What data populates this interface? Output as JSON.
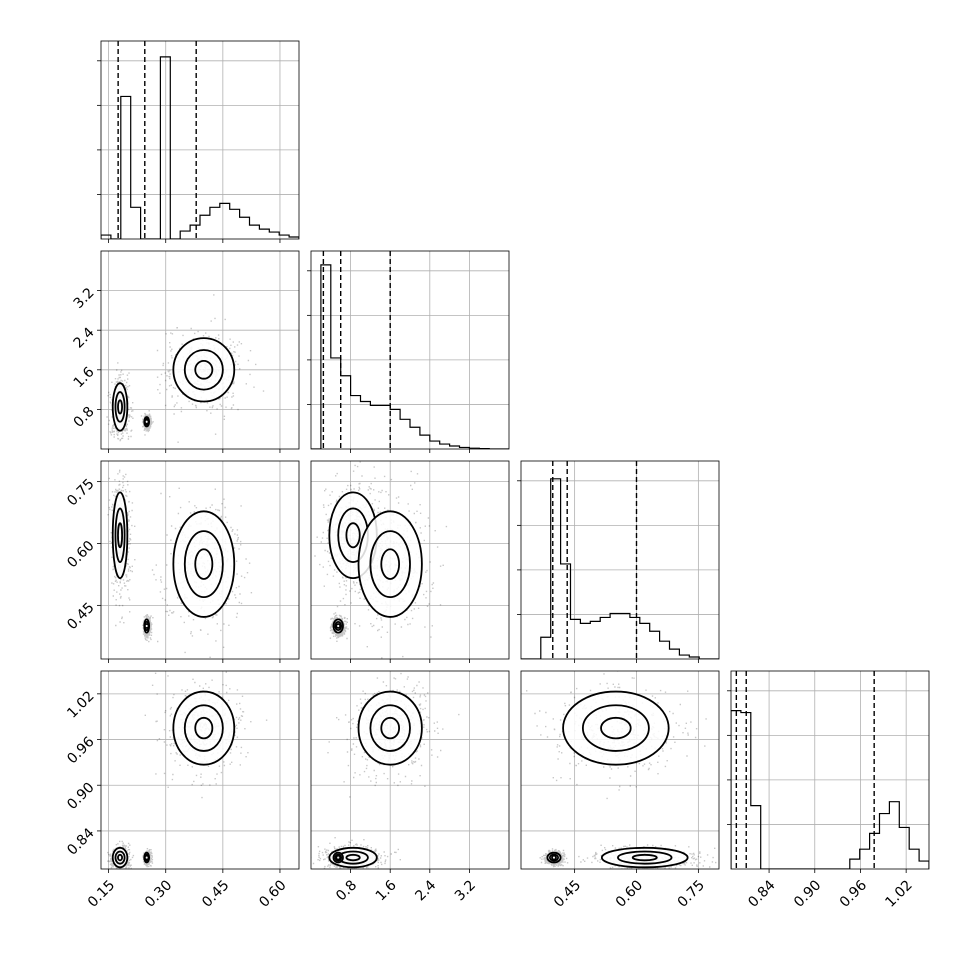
{
  "chart_data": {
    "type": "corner",
    "title": "",
    "n_params": 4,
    "grid": true,
    "ranges": [
      [
        0.13,
        0.65
      ],
      [
        0.0,
        4.0
      ],
      [
        0.32,
        0.8
      ],
      [
        0.79,
        1.05
      ]
    ],
    "axis_ticks": [
      [
        0.15,
        0.3,
        0.45,
        0.6
      ],
      [
        0.8,
        1.6,
        2.4,
        3.2
      ],
      [
        0.45,
        0.6,
        0.75
      ],
      [
        0.84,
        0.9,
        0.96,
        1.02
      ]
    ],
    "axis_tick_labels": [
      [
        "0.15",
        "0.30",
        "0.45",
        "0.60"
      ],
      [
        "0.8",
        "1.6",
        "2.4",
        "3.2"
      ],
      [
        "0.45",
        "0.60",
        "0.75"
      ],
      [
        "0.84",
        "0.90",
        "0.96",
        "1.02"
      ]
    ],
    "quantiles": [
      [
        0.175,
        0.245,
        0.38
      ],
      [
        0.25,
        0.6,
        1.6
      ],
      [
        0.397,
        0.432,
        0.6
      ],
      [
        0.797,
        0.81,
        0.978
      ]
    ],
    "histograms": [
      [
        0.02,
        0.0,
        0.72,
        0.16,
        0.0,
        0.0,
        0.92,
        0.0,
        0.04,
        0.07,
        0.12,
        0.16,
        0.18,
        0.15,
        0.11,
        0.07,
        0.05,
        0.035,
        0.02,
        0.01
      ],
      [
        0.0,
        0.93,
        0.46,
        0.37,
        0.27,
        0.24,
        0.22,
        0.22,
        0.2,
        0.15,
        0.11,
        0.07,
        0.04,
        0.025,
        0.015,
        0.008,
        0.004,
        0.002,
        0.0,
        0.0
      ],
      [
        0.0,
        0.0,
        0.11,
        0.91,
        0.48,
        0.2,
        0.18,
        0.19,
        0.21,
        0.23,
        0.23,
        0.21,
        0.18,
        0.14,
        0.09,
        0.05,
        0.02,
        0.01,
        0.0,
        0.0
      ],
      [
        0.8,
        0.79,
        0.32,
        0.0,
        0.0,
        0.0,
        0.0,
        0.0,
        0.0,
        0.0,
        0.0,
        0.0,
        0.05,
        0.1,
        0.18,
        0.28,
        0.34,
        0.21,
        0.1,
        0.04
      ]
    ],
    "clusters": [
      {
        "center": [
          0.18,
          0.85,
          0.62,
          0.805
        ],
        "spread": [
          0.012,
          0.3,
          0.065,
          0.008
        ],
        "weight": 0.3
      },
      {
        "center": [
          0.25,
          0.55,
          0.4,
          0.805
        ],
        "spread": [
          0.004,
          0.06,
          0.01,
          0.004
        ],
        "weight": 0.45
      },
      {
        "center": [
          0.4,
          1.6,
          0.55,
          0.975
        ],
        "spread": [
          0.05,
          0.4,
          0.08,
          0.03
        ],
        "weight": 0.25
      }
    ],
    "scatter_points_per_panel": 1800
  }
}
